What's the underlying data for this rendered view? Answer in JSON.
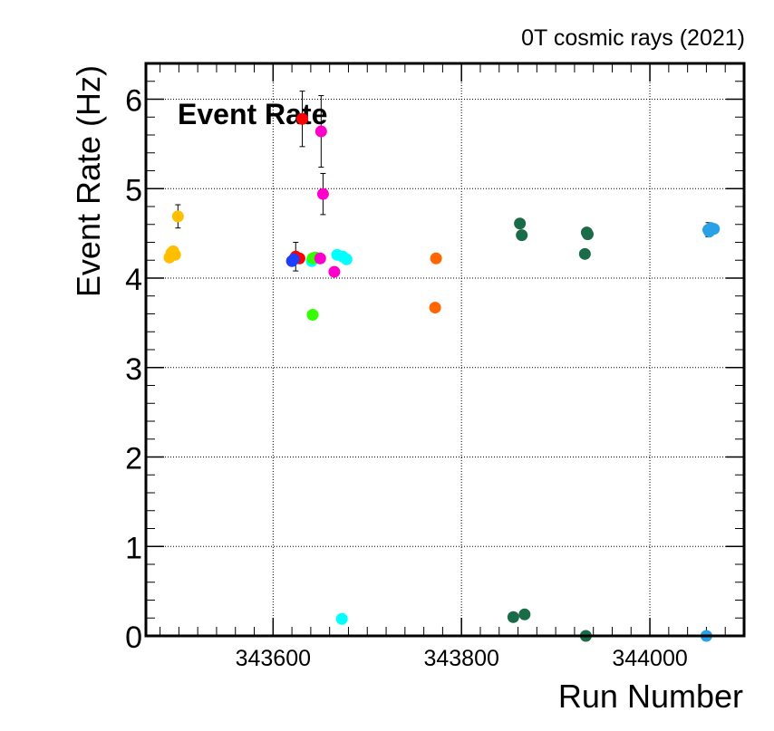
{
  "chart_data": {
    "type": "scatter",
    "title": "Event Rate",
    "caption": "0T cosmic rays (2021)",
    "xlabel": "Run Number",
    "ylabel": "Event Rate (Hz)",
    "xlim": [
      343465,
      344100
    ],
    "ylim": [
      0,
      6.4
    ],
    "xticks": [
      343600,
      343800,
      344000
    ],
    "yticks": [
      0,
      1,
      2,
      3,
      4,
      5,
      6
    ],
    "grid": true,
    "legend": "none",
    "series": [
      {
        "color": "#ffbf00",
        "points": [
          {
            "x": 343490,
            "y": 4.23
          },
          {
            "x": 343492,
            "y": 4.28
          },
          {
            "x": 343494,
            "y": 4.3
          },
          {
            "x": 343496,
            "y": 4.26
          },
          {
            "x": 343499,
            "y": 4.69,
            "err": 0.13
          }
        ]
      },
      {
        "color": "#ff0000",
        "points": [
          {
            "x": 343624,
            "y": 4.24,
            "err": 0.16
          },
          {
            "x": 343628,
            "y": 4.22
          },
          {
            "x": 343631,
            "y": 5.78,
            "err": 0.31
          }
        ]
      },
      {
        "color": "#1f3fff",
        "points": [
          {
            "x": 343620,
            "y": 4.19
          },
          {
            "x": 343622,
            "y": 4.21
          }
        ]
      },
      {
        "color": "#00ffff",
        "points": [
          {
            "x": 343641,
            "y": 4.19
          },
          {
            "x": 343668,
            "y": 4.26
          },
          {
            "x": 343674,
            "y": 4.24
          },
          {
            "x": 343678,
            "y": 4.21
          },
          {
            "x": 343673,
            "y": 0.19
          }
        ]
      },
      {
        "color": "#33ff00",
        "points": [
          {
            "x": 343642,
            "y": 4.22
          },
          {
            "x": 343645,
            "y": 4.23
          },
          {
            "x": 343642,
            "y": 3.59
          }
        ]
      },
      {
        "color": "#ff00cc",
        "points": [
          {
            "x": 343651,
            "y": 5.64,
            "err": 0.4
          },
          {
            "x": 343653,
            "y": 4.94,
            "err": 0.23
          },
          {
            "x": 343650,
            "y": 4.22
          },
          {
            "x": 343665,
            "y": 4.07
          }
        ]
      },
      {
        "color": "#ff6600",
        "points": [
          {
            "x": 343773,
            "y": 4.22
          },
          {
            "x": 343772,
            "y": 3.67
          }
        ]
      },
      {
        "color": "#1a6b47",
        "points": [
          {
            "x": 343862,
            "y": 4.61
          },
          {
            "x": 343864,
            "y": 4.48
          },
          {
            "x": 343933,
            "y": 4.51
          },
          {
            "x": 343934,
            "y": 4.49
          },
          {
            "x": 343931,
            "y": 4.27
          },
          {
            "x": 343855,
            "y": 0.21
          },
          {
            "x": 343867,
            "y": 0.24
          },
          {
            "x": 343932,
            "y": 0.0
          }
        ]
      },
      {
        "color": "#2aa0e6",
        "points": [
          {
            "x": 344062,
            "y": 4.54,
            "err": 0.08
          },
          {
            "x": 344065,
            "y": 4.56
          },
          {
            "x": 344068,
            "y": 4.55
          },
          {
            "x": 344063,
            "y": 4.52
          },
          {
            "x": 344060,
            "y": 0.0
          }
        ]
      }
    ]
  }
}
